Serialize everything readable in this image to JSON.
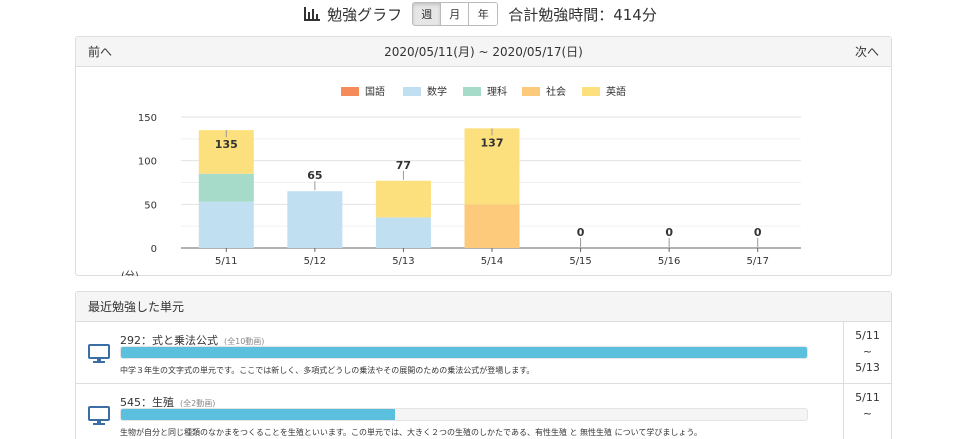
{
  "header": {
    "icon": "bar-chart-icon",
    "title": "勉強グラフ",
    "period_buttons": [
      {
        "label": "週",
        "active": true
      },
      {
        "label": "月",
        "active": false
      },
      {
        "label": "年",
        "active": false
      }
    ],
    "total": "合計勉強時間：414分"
  },
  "chart_panel": {
    "prev_label": "前へ",
    "next_label": "次へ",
    "range": "2020/05/11(月) ~ 2020/05/17(日)"
  },
  "chart_data": {
    "type": "bar",
    "stacked": true,
    "categories": [
      "5/11",
      "5/12",
      "5/13",
      "5/14",
      "5/15",
      "5/16",
      "5/17"
    ],
    "series": [
      {
        "name": "国語",
        "color": "#f58a5b",
        "values": [
          0,
          0,
          0,
          0,
          0,
          0,
          0
        ]
      },
      {
        "name": "数学",
        "color": "#c0dff0",
        "values": [
          53,
          65,
          35,
          0,
          0,
          0,
          0
        ]
      },
      {
        "name": "理科",
        "color": "#a6dbc9",
        "values": [
          32,
          0,
          0,
          0,
          0,
          0,
          0
        ]
      },
      {
        "name": "社会",
        "color": "#fdc97a",
        "values": [
          0,
          0,
          0,
          50,
          0,
          0,
          0
        ]
      },
      {
        "name": "英語",
        "color": "#fde07e",
        "values": [
          50,
          0,
          42,
          87,
          0,
          0,
          0
        ]
      }
    ],
    "totals": [
      "135",
      "65",
      "77",
      "137",
      "0",
      "0",
      "0"
    ],
    "yticks": [
      "0",
      "50",
      "100",
      "150"
    ],
    "ylim": [
      0,
      150
    ],
    "unit_label": "(分)",
    "legend_position": "top",
    "grid": true
  },
  "recent": {
    "title": "最近勉強した単元",
    "units": [
      {
        "title": "292：式と乗法公式",
        "count": "(全10動画)",
        "progress": 1.0,
        "description": "中学３年生の文字式の単元です。ここでは新しく、多項式どうしの乗法やその展開のための乗法公式が登場します。",
        "date_start": "5/11",
        "date_sep": "~",
        "date_end": "5/13"
      },
      {
        "title": "545：生殖",
        "count": "(全2動画)",
        "progress": 0.4,
        "description": "生物が自分と同じ種類のなかまをつくることを生殖といいます。この単元では、大きく２つの生殖のしかたである、有性生殖 と 無性生殖 について学びましょう。",
        "date_start": "5/11",
        "date_sep": "~",
        "date_end": ""
      }
    ]
  }
}
